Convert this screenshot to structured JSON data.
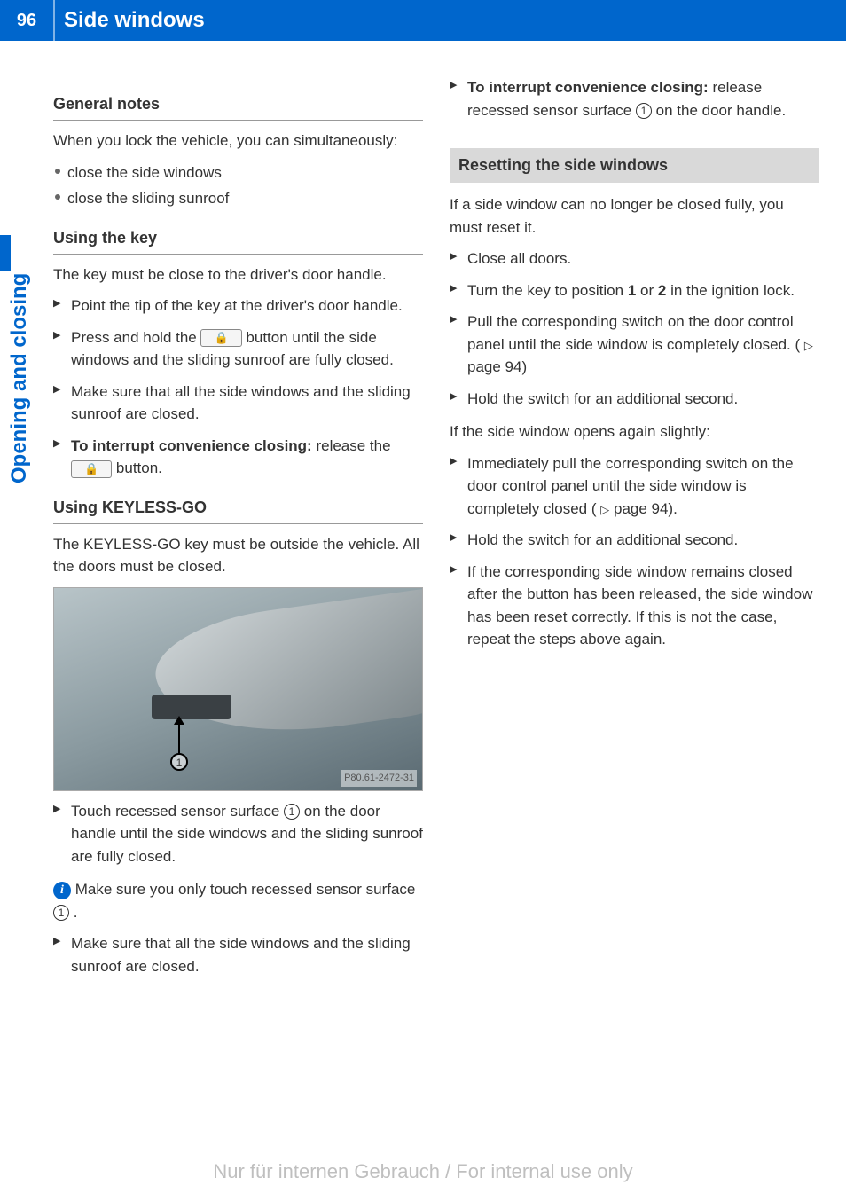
{
  "page_number": "96",
  "page_title": "Side windows",
  "side_tab": "Opening and closing",
  "colors": {
    "brand_blue": "#0066cc",
    "grey_bg": "#d9d9d9",
    "text": "#333333",
    "watermark": "#bfbfbf"
  },
  "left": {
    "general_notes_head": "General notes",
    "general_intro": "When you lock the vehicle, you can simultaneously:",
    "general_bullets": [
      "close the side windows",
      "close the sliding sunroof"
    ],
    "using_key_head": "Using the key",
    "using_key_intro": "The key must be close to the driver's door handle.",
    "key_steps": {
      "s1": "Point the tip of the key at the driver's door handle.",
      "s2a": "Press and hold the ",
      "s2b": " button until the side windows and the sliding sunroof are fully closed.",
      "s3": "Make sure that all the side windows and the sliding sunroof are closed.",
      "s4a": "To interrupt convenience closing:",
      "s4b": " release the ",
      "s4c": " button."
    },
    "keyless_head": "Using KEYLESS-GO",
    "keyless_intro": "The KEYLESS-GO key must be outside the vehicle. All the doors must be closed.",
    "figure_label": "P80.61-2472-31",
    "keyless_steps": {
      "s1a": "Touch recessed sensor surface ",
      "s1b": " on the door handle until the side windows and the sliding sunroof are fully closed.",
      "info_a": " Make sure you only touch recessed sensor surface ",
      "info_b": ".",
      "s2": "Make sure that all the side windows and the sliding sunroof are closed."
    }
  },
  "right": {
    "top_step": {
      "bold": "To interrupt convenience closing:",
      "rest_a": " release recessed sensor surface ",
      "rest_b": " on the door handle."
    },
    "reset_head": "Resetting the side windows",
    "reset_intro": "If a side window can no longer be closed fully, you must reset it.",
    "reset_steps": {
      "s1": "Close all doors.",
      "s2a": "Turn the key to position ",
      "s2_pos1": "1",
      "s2_or": " or ",
      "s2_pos2": "2",
      "s2b": " in the ignition lock.",
      "s3a": "Pull the corresponding switch on the door control panel until the side window is completely closed. (",
      "s3_ref": " page 94)",
      "s4": "Hold the switch for an additional second."
    },
    "reset_mid": "If the side window opens again slightly:",
    "reset_steps2": {
      "s1a": "Immediately pull the corresponding switch on the door control panel until the side window is completely closed (",
      "s1_ref": " page 94).",
      "s2": "Hold the switch for an additional second.",
      "s3": "If the corresponding side window remains closed after the button has been released, the side window has been reset correctly. If this is not the case, repeat the steps above again."
    }
  },
  "lock_glyph": "🔒",
  "circ1": "1",
  "info_glyph": "i",
  "tri_glyph": "▷",
  "watermark": "Nur für internen Gebrauch / For internal use only"
}
